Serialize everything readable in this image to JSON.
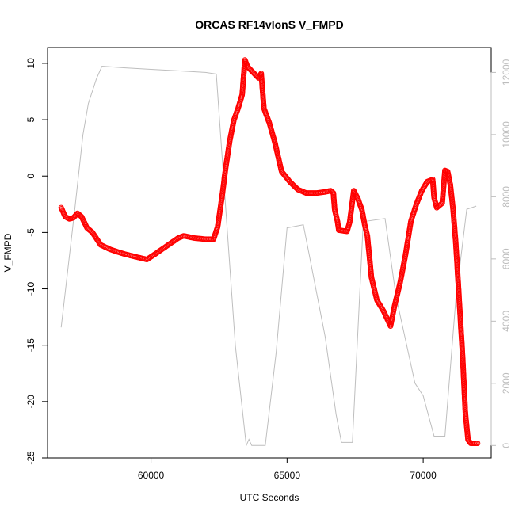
{
  "chart_data": {
    "type": "scatter",
    "title": "ORCAS RF14vlonS V_FMPD",
    "xlabel": "UTC Seconds",
    "ylabel": "V_FMPD",
    "y2label": "",
    "xlim": [
      56200,
      72500
    ],
    "ylim": [
      -25,
      11.4
    ],
    "y2lim": [
      -400,
      12800
    ],
    "x_ticks": [
      60000,
      65000,
      70000
    ],
    "x_tick_labels": [
      "60000",
      "65000",
      "70000"
    ],
    "y_ticks": [
      -25,
      -20,
      -15,
      -10,
      -5,
      0,
      5,
      10
    ],
    "y_tick_labels": [
      "-25",
      "-20",
      "-15",
      "-10",
      "-5",
      "0",
      "5",
      "10"
    ],
    "y2_ticks": [
      0,
      2000,
      4000,
      6000,
      8000,
      10000,
      12000
    ],
    "y2_tick_labels": [
      "0",
      "2000",
      "4000",
      "6000",
      "8000",
      "10000",
      "12000"
    ],
    "grid": false,
    "series": [
      {
        "axis": "left",
        "style": "open-circles",
        "color": "#ff0000",
        "points": [
          [
            56700,
            -2.8
          ],
          [
            56850,
            -3.6
          ],
          [
            57000,
            -3.8
          ],
          [
            57150,
            -3.7
          ],
          [
            57300,
            -3.3
          ],
          [
            57450,
            -3.6
          ],
          [
            57650,
            -4.6
          ],
          [
            57850,
            -5.0
          ],
          [
            58150,
            -6.1
          ],
          [
            58500,
            -6.5
          ],
          [
            59000,
            -6.9
          ],
          [
            59500,
            -7.2
          ],
          [
            59850,
            -7.4
          ],
          [
            60100,
            -7.0
          ],
          [
            60400,
            -6.5
          ],
          [
            60700,
            -6.0
          ],
          [
            61000,
            -5.5
          ],
          [
            61200,
            -5.3
          ],
          [
            61600,
            -5.5
          ],
          [
            62000,
            -5.6
          ],
          [
            62300,
            -5.6
          ],
          [
            62450,
            -4.5
          ],
          [
            62600,
            -2.0
          ],
          [
            62750,
            0.8
          ],
          [
            62900,
            3.2
          ],
          [
            63050,
            5.0
          ],
          [
            63200,
            6.0
          ],
          [
            63350,
            7.2
          ],
          [
            63450,
            10.3
          ],
          [
            63550,
            9.7
          ],
          [
            63750,
            9.2
          ],
          [
            63950,
            8.7
          ],
          [
            64050,
            9.1
          ],
          [
            64150,
            6.0
          ],
          [
            64350,
            4.7
          ],
          [
            64550,
            3.0
          ],
          [
            64800,
            0.4
          ],
          [
            65100,
            -0.5
          ],
          [
            65400,
            -1.2
          ],
          [
            65700,
            -1.5
          ],
          [
            66100,
            -1.5
          ],
          [
            66400,
            -1.4
          ],
          [
            66600,
            -1.3
          ],
          [
            66700,
            -1.5
          ],
          [
            66750,
            -3.0
          ],
          [
            66850,
            -4.0
          ],
          [
            66900,
            -4.8
          ],
          [
            67200,
            -4.9
          ],
          [
            67300,
            -4.1
          ],
          [
            67450,
            -1.3
          ],
          [
            67600,
            -2.0
          ],
          [
            67750,
            -3.0
          ],
          [
            67850,
            -4.3
          ],
          [
            67950,
            -5.3
          ],
          [
            68100,
            -9.0
          ],
          [
            68300,
            -11.0
          ],
          [
            68550,
            -12.0
          ],
          [
            68800,
            -13.3
          ],
          [
            68950,
            -11.5
          ],
          [
            69150,
            -9.5
          ],
          [
            69350,
            -7.0
          ],
          [
            69550,
            -4.0
          ],
          [
            69750,
            -2.5
          ],
          [
            69950,
            -1.3
          ],
          [
            70150,
            -0.5
          ],
          [
            70350,
            -0.3
          ],
          [
            70400,
            -1.9
          ],
          [
            70500,
            -2.8
          ],
          [
            70700,
            -2.4
          ],
          [
            70800,
            0.5
          ],
          [
            70900,
            0.4
          ],
          [
            71000,
            -0.8
          ],
          [
            71100,
            -3.0
          ],
          [
            71200,
            -6.0
          ],
          [
            71350,
            -12.0
          ],
          [
            71450,
            -16.0
          ],
          [
            71550,
            -21.0
          ],
          [
            71650,
            -23.4
          ],
          [
            71750,
            -23.7
          ],
          [
            72000,
            -23.7
          ]
        ]
      },
      {
        "axis": "right",
        "style": "line",
        "color": "#bebebe",
        "points": [
          [
            56700,
            3800
          ],
          [
            57200,
            7600
          ],
          [
            57500,
            10000
          ],
          [
            57700,
            11000
          ],
          [
            58000,
            11800
          ],
          [
            58200,
            12200
          ],
          [
            59000,
            12150
          ],
          [
            60000,
            12100
          ],
          [
            61000,
            12050
          ],
          [
            62000,
            12000
          ],
          [
            62400,
            11950
          ],
          [
            63100,
            3200
          ],
          [
            63500,
            0
          ],
          [
            63600,
            200
          ],
          [
            63700,
            0
          ],
          [
            64200,
            0
          ],
          [
            64600,
            3000
          ],
          [
            65000,
            7000
          ],
          [
            65600,
            7100
          ],
          [
            66400,
            3500
          ],
          [
            66800,
            1000
          ],
          [
            67000,
            100
          ],
          [
            67400,
            100
          ],
          [
            67800,
            7200
          ],
          [
            68600,
            7300
          ],
          [
            69000,
            4800
          ],
          [
            69700,
            2000
          ],
          [
            70000,
            1600
          ],
          [
            70400,
            300
          ],
          [
            70800,
            300
          ],
          [
            71200,
            4700
          ],
          [
            71600,
            7600
          ],
          [
            71950,
            7700
          ]
        ]
      }
    ]
  }
}
